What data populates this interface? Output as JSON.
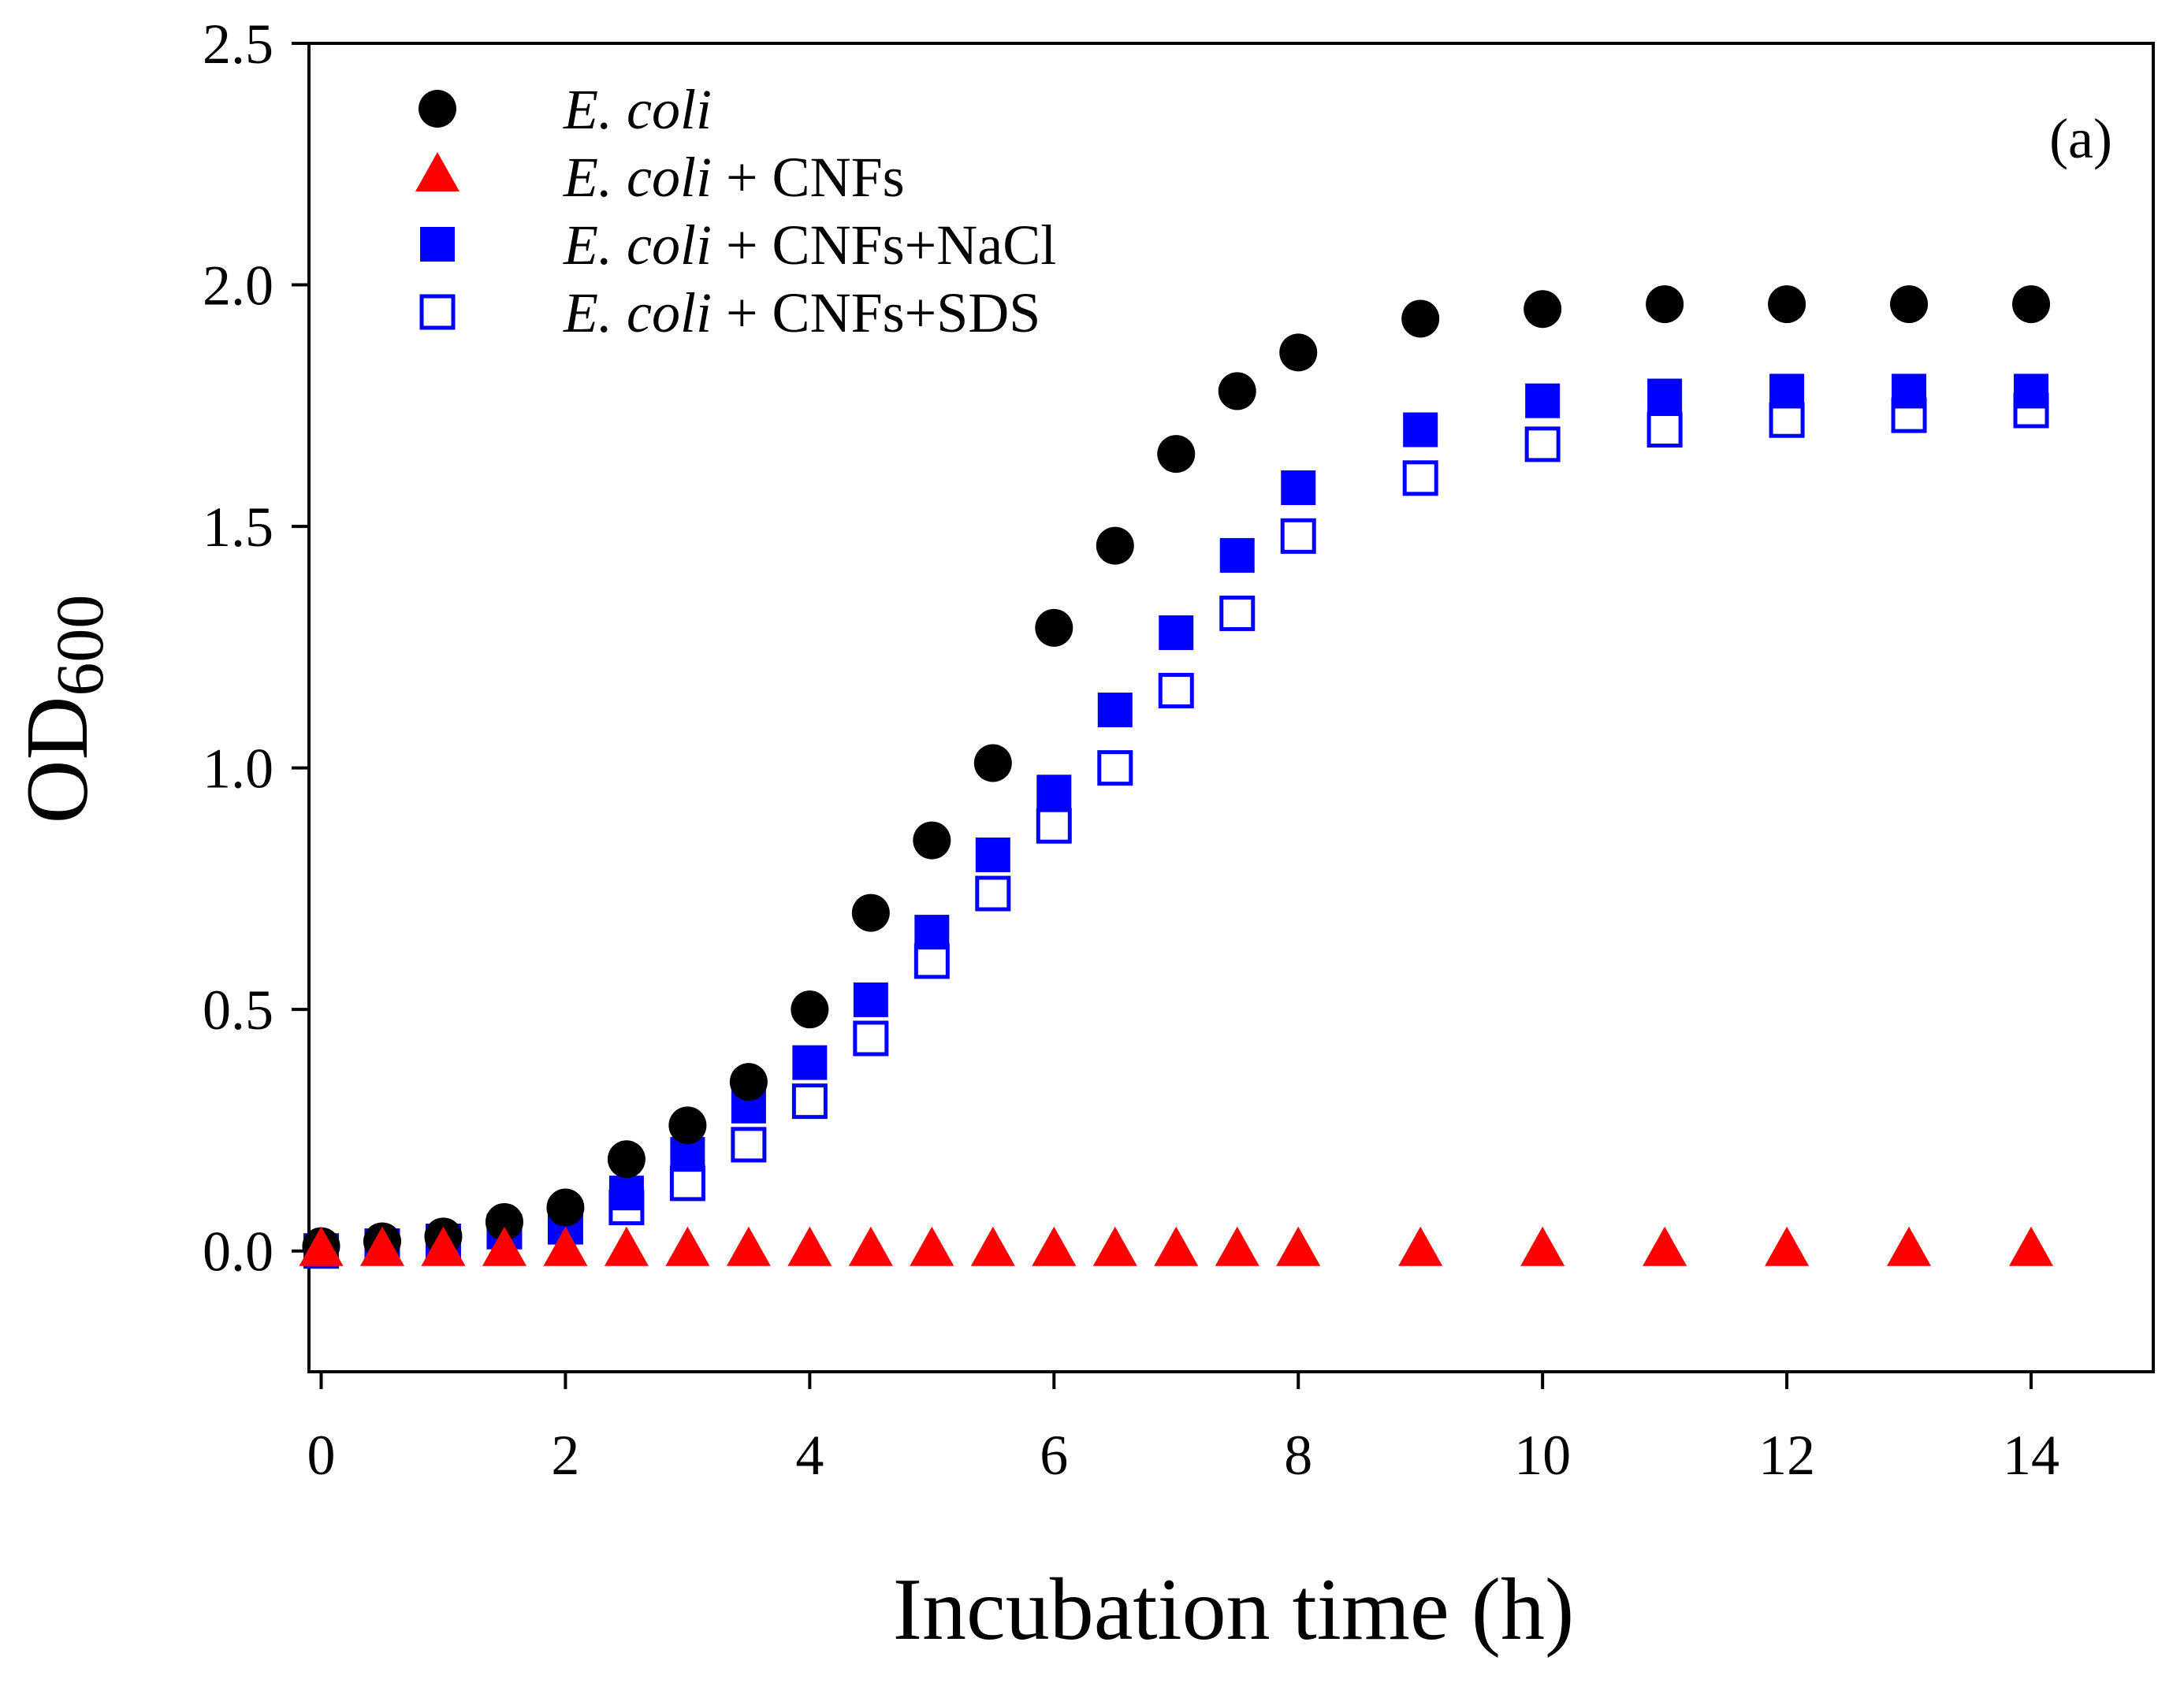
{
  "chart_data": {
    "type": "scatter",
    "xlabel": "Incubation time (h)",
    "ylabel_main": "OD",
    "ylabel_subscript": "600",
    "xlim": [
      -0.1,
      15
    ],
    "ylim": [
      -0.25,
      2.5
    ],
    "x_ticks": [
      "0",
      "2",
      "4",
      "6",
      "8",
      "10",
      "12",
      "14"
    ],
    "x_tick_values": [
      0,
      2,
      4,
      6,
      8,
      10,
      12,
      14
    ],
    "y_ticks": [
      "0.0",
      "0.5",
      "1.0",
      "1.5",
      "2.0",
      "2.5"
    ],
    "y_tick_values": [
      0.0,
      0.5,
      1.0,
      1.5,
      2.0,
      2.5
    ],
    "panel_label": "(a)",
    "legend_position": "top-left",
    "series": [
      {
        "name": "E. coli",
        "legend_italic": "E. coli",
        "legend_rest": "",
        "marker": "circle",
        "color": "#000000",
        "x": [
          0,
          0.5,
          1,
          1.5,
          2,
          2.5,
          3,
          3.5,
          4,
          4.5,
          5,
          5.5,
          6,
          6.5,
          7,
          7.5,
          8,
          9,
          10,
          11,
          12,
          13,
          14
        ],
        "values": [
          0.01,
          0.02,
          0.03,
          0.06,
          0.09,
          0.19,
          0.26,
          0.35,
          0.5,
          0.7,
          0.85,
          1.01,
          1.29,
          1.46,
          1.65,
          1.78,
          1.86,
          1.93,
          1.95,
          1.96,
          1.96,
          1.96,
          1.96
        ]
      },
      {
        "name": "E. coli + CNFs",
        "legend_italic": "E. coli",
        "legend_rest": " + CNFs",
        "marker": "triangle",
        "color": "#ff0000",
        "x": [
          0,
          0.5,
          1,
          1.5,
          2,
          2.5,
          3,
          3.5,
          4,
          4.5,
          5,
          5.5,
          6,
          6.5,
          7,
          7.5,
          8,
          9,
          10,
          11,
          12,
          13,
          14
        ],
        "values": [
          0.0,
          0.0,
          0.0,
          0.0,
          0.0,
          0.0,
          0.0,
          0.0,
          0.0,
          0.0,
          0.0,
          0.0,
          0.0,
          0.0,
          0.0,
          0.0,
          0.0,
          0.0,
          0.0,
          0.0,
          0.0,
          0.0,
          0.0
        ]
      },
      {
        "name": "E. coli + CNFs+NaCl",
        "legend_italic": "E. coli",
        "legend_rest": " + CNFs+NaCl",
        "marker": "square-filled",
        "color": "#0000ff",
        "x": [
          0,
          0.5,
          1,
          1.5,
          2,
          2.5,
          3,
          3.5,
          4,
          4.5,
          5,
          5.5,
          6,
          6.5,
          7,
          7.5,
          8,
          9,
          10,
          11,
          12,
          13,
          14
        ],
        "values": [
          0.0,
          0.01,
          0.02,
          0.04,
          0.05,
          0.12,
          0.2,
          0.3,
          0.39,
          0.52,
          0.66,
          0.82,
          0.95,
          1.12,
          1.28,
          1.44,
          1.58,
          1.7,
          1.76,
          1.77,
          1.78,
          1.78,
          1.78
        ]
      },
      {
        "name": "E. coli + CNFs+SDS",
        "legend_italic": "E. coli",
        "legend_rest": " + CNFs+SDS",
        "marker": "square-open",
        "color": "#0000ff",
        "x": [
          0,
          0.5,
          1,
          1.5,
          2,
          2.5,
          3,
          3.5,
          4,
          4.5,
          5,
          5.5,
          6,
          6.5,
          7,
          7.5,
          8,
          9,
          10,
          11,
          12,
          13,
          14
        ],
        "values": [
          0.0,
          0.01,
          0.02,
          0.04,
          0.05,
          0.09,
          0.14,
          0.22,
          0.31,
          0.44,
          0.6,
          0.74,
          0.88,
          1.0,
          1.16,
          1.32,
          1.48,
          1.6,
          1.67,
          1.7,
          1.72,
          1.73,
          1.74
        ]
      }
    ]
  }
}
